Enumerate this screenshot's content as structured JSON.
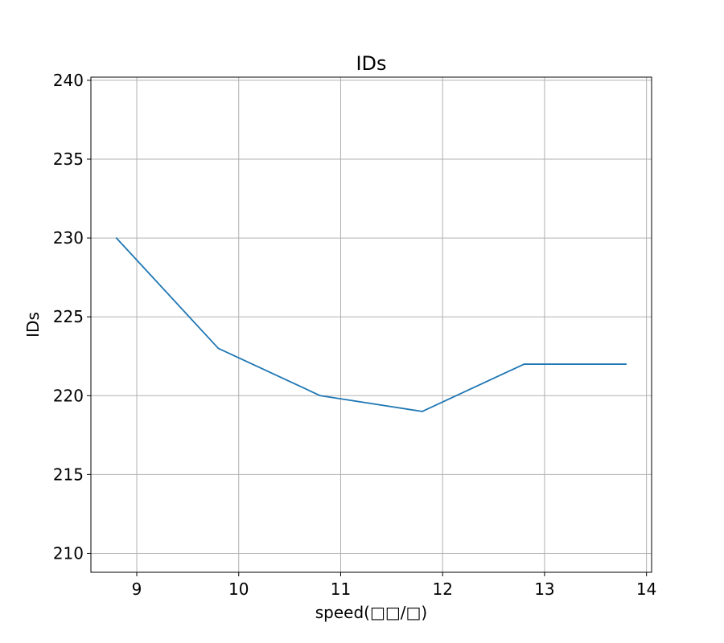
{
  "chart_data": {
    "type": "line",
    "title": "IDs",
    "xlabel": "speed(□□/□)",
    "ylabel": "IDs",
    "xlim": [
      8.55,
      14.05
    ],
    "ylim": [
      208.8,
      240.2
    ],
    "xticks": [
      9,
      10,
      11,
      12,
      13,
      14
    ],
    "yticks": [
      210,
      215,
      220,
      225,
      230,
      235,
      240
    ],
    "grid": true,
    "series": [
      {
        "x": [
          8.8,
          9.8,
          10.8,
          11.8,
          12.8,
          13.8
        ],
        "y": [
          230,
          223,
          220,
          219,
          222,
          222
        ],
        "color": "#1f77b4"
      }
    ]
  }
}
